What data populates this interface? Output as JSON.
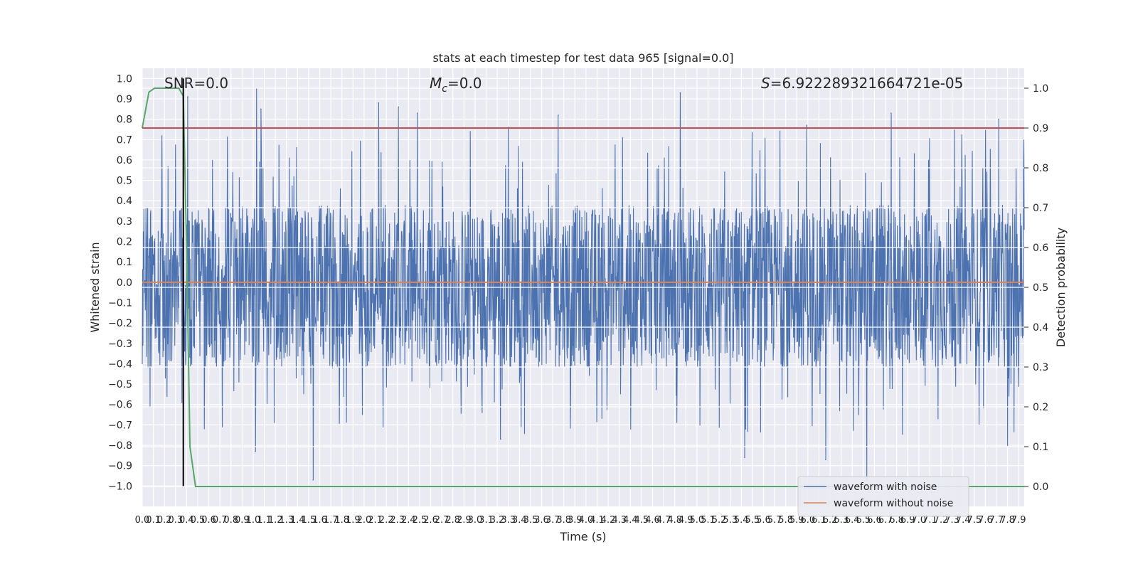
{
  "chart_data": {
    "type": "line",
    "title": "stats at each timestep for test data 965 [signal=0.0]",
    "xlabel": "Time (s)",
    "ylabel": "Whitened strain",
    "y2label": "Detection probability",
    "xlim": [
      0.0,
      7.95
    ],
    "ylim": [
      -1.1,
      1.05
    ],
    "y2lim": [
      -0.05,
      1.05
    ],
    "grid": true,
    "legend_position": "bottom-right",
    "annotations": {
      "snr": "SNR=0.0",
      "mc_symbol": "M",
      "mc_subscript": "c",
      "mc_value": "=0.0",
      "s_symbol": "S",
      "s_value": "=6.922289321664721e-05"
    },
    "y_ticks": [
      -1.0,
      -0.9,
      -0.8,
      -0.7,
      -0.6,
      -0.5,
      -0.4,
      -0.3,
      -0.2,
      -0.1,
      0.0,
      0.1,
      0.2,
      0.3,
      0.4,
      0.5,
      0.6,
      0.7,
      0.8,
      0.9,
      1.0
    ],
    "y_tick_labels": [
      "−1.0",
      "−0.9",
      "−0.8",
      "−0.7",
      "−0.6",
      "−0.5",
      "−0.4",
      "−0.3",
      "−0.2",
      "−0.1",
      "0.0",
      "0.1",
      "0.2",
      "0.3",
      "0.4",
      "0.5",
      "0.6",
      "0.7",
      "0.8",
      "0.9",
      "1.0"
    ],
    "y2_ticks": [
      0.0,
      0.1,
      0.2,
      0.3,
      0.4,
      0.5,
      0.6,
      0.7,
      0.8,
      0.9,
      1.0
    ],
    "y2_tick_labels": [
      "0.0",
      "0.1",
      "0.2",
      "0.3",
      "0.4",
      "0.5",
      "0.6",
      "0.7",
      "0.8",
      "0.9",
      "1.0"
    ],
    "x_ticks": [
      0.0,
      0.1,
      0.2,
      0.3,
      0.4,
      0.5,
      0.6,
      0.7,
      0.8,
      0.9,
      1.0,
      1.1,
      1.2,
      1.3,
      1.4,
      1.5,
      1.6,
      1.7,
      1.8,
      1.9,
      2.0,
      2.1,
      2.2,
      2.3,
      2.4,
      2.5,
      2.6,
      2.7,
      2.8,
      2.9,
      3.0,
      3.1,
      3.2,
      3.3,
      3.4,
      3.5,
      3.6,
      3.7,
      3.8,
      3.9,
      4.0,
      4.1,
      4.2,
      4.3,
      4.4,
      4.5,
      4.6,
      4.7,
      4.8,
      4.9,
      5.0,
      5.1,
      5.2,
      5.3,
      5.4,
      5.5,
      5.6,
      5.7,
      5.8,
      5.9,
      6.0,
      6.1,
      6.2,
      6.3,
      6.4,
      6.5,
      6.6,
      6.7,
      6.8,
      6.9,
      7.0,
      7.1,
      7.2,
      7.3,
      7.4,
      7.5,
      7.6,
      7.7,
      7.8,
      7.9
    ],
    "x_tick_labels": [
      "0.0",
      "0.1",
      "0.2",
      "0.3",
      "0.4",
      "0.5",
      "0.6",
      "0.7",
      "0.8",
      "0.9",
      "1.0",
      "1.1",
      "1.2",
      "1.3",
      "1.4",
      "1.5",
      "1.6",
      "1.7",
      "1.8",
      "1.9",
      "2.0",
      "2.1",
      "2.2",
      "2.3",
      "2.4",
      "2.5",
      "2.6",
      "2.7",
      "2.8",
      "2.9",
      "3.0",
      "3.1",
      "3.2",
      "3.3",
      "3.4",
      "3.5",
      "3.6",
      "3.7",
      "3.8",
      "3.9",
      "4.0",
      "4.1",
      "4.2",
      "4.3",
      "4.4",
      "4.5",
      "4.6",
      "4.7",
      "4.8",
      "4.9",
      "5.0",
      "5.1",
      "5.2",
      "5.3",
      "5.4",
      "5.5",
      "5.6",
      "5.7",
      "5.8",
      "5.9",
      "6.0",
      "6.1",
      "6.2",
      "6.3",
      "6.4",
      "6.5",
      "6.6",
      "6.7",
      "6.8",
      "6.9",
      "7.0",
      "7.1",
      "7.2",
      "7.3",
      "7.4",
      "7.5",
      "7.6",
      "7.7",
      "7.8",
      "7.9"
    ],
    "series": [
      {
        "name": "waveform with noise",
        "axis": "left",
        "color": "#4c72b0",
        "noise": {
          "typical_min": -0.42,
          "typical_max": 0.38,
          "spike_max": 0.95,
          "spike_min": -0.97
        },
        "spikes": [
          {
            "x": 0.41,
            "y": 0.91
          },
          {
            "x": 1.03,
            "y": 0.95
          },
          {
            "x": 1.07,
            "y": 0.85
          },
          {
            "x": 2.13,
            "y": 0.88
          },
          {
            "x": 2.31,
            "y": 0.86
          },
          {
            "x": 2.48,
            "y": 0.83
          },
          {
            "x": 3.3,
            "y": 0.76
          },
          {
            "x": 3.75,
            "y": 0.82
          },
          {
            "x": 4.85,
            "y": 0.93
          },
          {
            "x": 5.99,
            "y": 0.77
          },
          {
            "x": 6.75,
            "y": 0.83
          },
          {
            "x": 7.72,
            "y": 0.8
          },
          {
            "x": 1.54,
            "y": -0.97
          },
          {
            "x": 6.53,
            "y": -0.97
          },
          {
            "x": 1.02,
            "y": -0.83
          },
          {
            "x": 3.23,
            "y": -0.77
          },
          {
            "x": 5.43,
            "y": -0.86
          },
          {
            "x": 6.16,
            "y": -0.87
          },
          {
            "x": 7.8,
            "y": -0.8
          }
        ]
      },
      {
        "name": "waveform without noise",
        "axis": "left",
        "color": "#dd8452",
        "x": [
          0.0,
          7.95
        ],
        "y": [
          0.0,
          0.0
        ]
      },
      {
        "axis": "right",
        "color": "#55a868",
        "x": [
          0.0,
          0.06,
          0.11,
          0.22,
          0.33,
          0.37,
          0.4,
          0.43,
          0.48,
          7.95
        ],
        "y": [
          0.9,
          0.99,
          1.0,
          1.0,
          1.0,
          0.98,
          0.6,
          0.1,
          0.0,
          0.0
        ]
      },
      {
        "axis": "right",
        "color": "#c44e52",
        "x": [
          0.0,
          7.95
        ],
        "y": [
          0.9,
          0.9
        ]
      }
    ],
    "vertical_marker": {
      "x": 0.37,
      "color": "#000000"
    }
  }
}
